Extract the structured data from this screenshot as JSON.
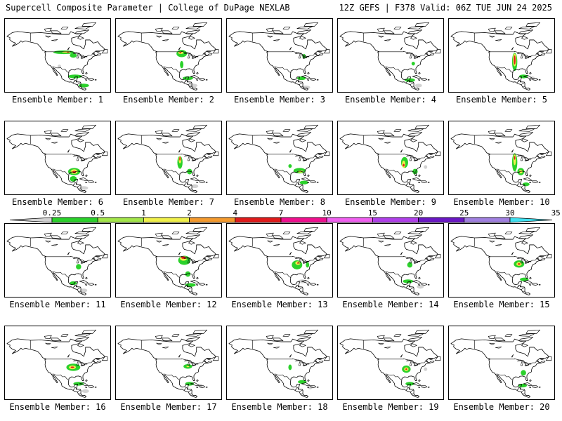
{
  "header": {
    "left": "Supercell Composite Parameter | College of DuPage NEXLAB",
    "right": "12Z GEFS | F378 Valid: 06Z TUE JUN 24 2025"
  },
  "colorbar": {
    "levels": [
      "0.25",
      "0.5",
      "1",
      "2",
      "4",
      "7",
      "10",
      "15",
      "20",
      "25",
      "30",
      "35"
    ],
    "colors": [
      "#d2d2d2",
      "#2bd12b",
      "#a3e64a",
      "#f0f04a",
      "#f49a2e",
      "#e01b1b",
      "#f0108f",
      "#f060f0",
      "#b040ea",
      "#6a18c4",
      "#a080e0",
      "#40e0f0"
    ]
  },
  "members": [
    {
      "caption": "Ensemble Member: 1",
      "blobs": [
        [
          "#2bd12b",
          -103,
          48.5,
          12,
          2
        ],
        [
          "#f0f04a",
          -100,
          48.8,
          5,
          1
        ],
        [
          "#e01b1b",
          -98,
          48.8,
          1.5,
          0.6
        ],
        [
          "#2bd12b",
          -92,
          45,
          4,
          2.5
        ],
        [
          "#2bd12b",
          -90,
          22,
          8,
          2
        ],
        [
          "#2bd12b",
          -80,
          12,
          6,
          2
        ],
        [
          "#d2d2d2",
          -108,
          33,
          2,
          2
        ]
      ]
    },
    {
      "caption": "Ensemble Member: 2",
      "blobs": [
        [
          "#2bd12b",
          -95,
          47,
          6,
          4
        ],
        [
          "#f0f04a",
          -96,
          48,
          3,
          1.5
        ],
        [
          "#e01b1b",
          -96.5,
          48,
          1.2,
          0.7
        ],
        [
          "#2bd12b",
          -95,
          35,
          2,
          4
        ],
        [
          "#2bd12b",
          -88,
          20,
          6,
          2
        ],
        [
          "#d2d2d2",
          -82,
          12,
          5,
          2
        ]
      ]
    },
    {
      "caption": "Ensemble Member: 3",
      "blobs": [
        [
          "#2bd12b",
          -82,
          44,
          2,
          2.5
        ],
        [
          "#2bd12b",
          -85,
          20,
          5,
          2
        ],
        [
          "#d2d2d2",
          -80,
          10,
          5,
          2
        ]
      ]
    },
    {
      "caption": "Ensemble Member: 4",
      "blobs": [
        [
          "#2bd12b",
          -84,
          36,
          2,
          2
        ],
        [
          "#2bd12b",
          -88,
          18,
          6,
          2
        ],
        [
          "#d2d2d2",
          -78,
          12,
          4,
          2
        ]
      ]
    },
    {
      "caption": "Ensemble Member: 5",
      "blobs": [
        [
          "#2bd12b",
          -95,
          38,
          3,
          10
        ],
        [
          "#f0f04a",
          -95,
          40,
          2,
          7
        ],
        [
          "#e01b1b",
          -95,
          40,
          1,
          5
        ],
        [
          "#2bd12b",
          -85,
          22,
          5,
          2
        ],
        [
          "#d2d2d2",
          -75,
          20,
          3,
          2
        ]
      ]
    },
    {
      "caption": "Ensemble Member: 6",
      "blobs": [
        [
          "#2bd12b",
          -91,
          30,
          7,
          4
        ],
        [
          "#f0f04a",
          -91,
          30,
          4,
          2.5
        ],
        [
          "#e01b1b",
          -91,
          29.5,
          2,
          1.2
        ],
        [
          "#2bd12b",
          -92,
          22,
          4,
          3
        ],
        [
          "#d2d2d2",
          -80,
          12,
          5,
          2
        ]
      ]
    },
    {
      "caption": "Ensemble Member: 7",
      "blobs": [
        [
          "#2bd12b",
          -97,
          40,
          3,
          7
        ],
        [
          "#f0f04a",
          -97,
          43,
          1.5,
          4
        ],
        [
          "#e01b1b",
          -97,
          44,
          0.8,
          2
        ],
        [
          "#2bd12b",
          -86,
          30,
          3,
          3
        ],
        [
          "#d2d2d2",
          -80,
          14,
          4,
          2
        ]
      ]
    },
    {
      "caption": "Ensemble Member: 8",
      "blobs": [
        [
          "#2bd12b",
          -87,
          31,
          7,
          3
        ],
        [
          "#f0f04a",
          -86,
          30,
          3,
          1.2
        ],
        [
          "#2bd12b",
          -98,
          36,
          2,
          2
        ],
        [
          "#2bd12b",
          -82,
          18,
          5,
          2
        ]
      ]
    },
    {
      "caption": "Ensemble Member: 9",
      "blobs": [
        [
          "#2bd12b",
          -94,
          40,
          4,
          6
        ],
        [
          "#f0f04a",
          -95,
          38,
          2,
          4
        ],
        [
          "#e01b1b",
          -95,
          37,
          1,
          1.5
        ],
        [
          "#2bd12b",
          -82,
          30,
          3,
          3
        ],
        [
          "#d2d2d2",
          -70,
          35,
          2,
          2
        ]
      ]
    },
    {
      "caption": "Ensemble Member: 10",
      "blobs": [
        [
          "#2bd12b",
          -95,
          40,
          3,
          10
        ],
        [
          "#f0f04a",
          -95,
          43,
          1.5,
          6
        ],
        [
          "#e01b1b",
          -95,
          45,
          0.7,
          2
        ],
        [
          "#2bd12b",
          -88,
          30,
          4,
          4
        ],
        [
          "#f0f04a",
          -88,
          30,
          2,
          2
        ],
        [
          "#2bd12b",
          -82,
          16,
          4,
          2
        ]
      ]
    },
    {
      "caption": "Ensemble Member: 11",
      "blobs": [
        [
          "#2bd12b",
          -86,
          38,
          3,
          3
        ],
        [
          "#2bd12b",
          -92,
          20,
          4,
          2
        ],
        [
          "#d2d2d2",
          -80,
          12,
          4,
          2
        ]
      ]
    },
    {
      "caption": "Ensemble Member: 12",
      "blobs": [
        [
          "#2bd12b",
          -92,
          45,
          7,
          5
        ],
        [
          "#f0f04a",
          -93,
          47,
          4,
          2.5
        ],
        [
          "#e01b1b",
          -93,
          48,
          2.5,
          1.4
        ],
        [
          "#2bd12b",
          -88,
          30,
          3,
          3
        ],
        [
          "#2bd12b",
          -85,
          18,
          6,
          2
        ]
      ]
    },
    {
      "caption": "Ensemble Member: 13",
      "blobs": [
        [
          "#2bd12b",
          -90,
          40,
          6,
          5
        ],
        [
          "#f0f04a",
          -89,
          42,
          3,
          2
        ],
        [
          "#e01b1b",
          -89,
          42,
          1,
          0.6
        ],
        [
          "#2bd12b",
          -78,
          40,
          2,
          3
        ],
        [
          "#d2d2d2",
          -84,
          22,
          5,
          2
        ]
      ]
    },
    {
      "caption": "Ensemble Member: 14",
      "blobs": [
        [
          "#2bd12b",
          -88,
          40,
          3,
          3
        ],
        [
          "#2bd12b",
          -90,
          22,
          6,
          2
        ],
        [
          "#d2d2d2",
          -76,
          16,
          4,
          2
        ]
      ]
    },
    {
      "caption": "Ensemble Member: 15",
      "blobs": [
        [
          "#2bd12b",
          -90,
          41,
          6,
          4
        ],
        [
          "#f0f04a",
          -90,
          41,
          3,
          2
        ],
        [
          "#e01b1b",
          -90,
          41,
          1.5,
          0.8
        ],
        [
          "#2bd12b",
          -84,
          24,
          5,
          2
        ]
      ]
    },
    {
      "caption": "Ensemble Member: 16",
      "blobs": [
        [
          "#2bd12b",
          -92,
          40,
          8,
          4
        ],
        [
          "#f0f04a",
          -93,
          40,
          4,
          2
        ],
        [
          "#e01b1b",
          -93,
          40,
          2,
          0.8
        ],
        [
          "#2bd12b",
          -86,
          22,
          6,
          2
        ],
        [
          "#d2d2d2",
          -78,
          14,
          4,
          2
        ]
      ]
    },
    {
      "caption": "Ensemble Member: 17",
      "blobs": [
        [
          "#2bd12b",
          -88,
          41,
          5,
          2.5
        ],
        [
          "#f0f04a",
          -88,
          41,
          1.5,
          0.8
        ],
        [
          "#2bd12b",
          -86,
          22,
          5,
          2
        ],
        [
          "#d2d2d2",
          -74,
          20,
          3,
          2
        ]
      ]
    },
    {
      "caption": "Ensemble Member: 18",
      "blobs": [
        [
          "#2bd12b",
          -98,
          40,
          2,
          3
        ],
        [
          "#2bd12b",
          -84,
          24,
          5,
          2
        ],
        [
          "#d2d2d2",
          -75,
          18,
          3,
          2
        ]
      ]
    },
    {
      "caption": "Ensemble Member: 19",
      "blobs": [
        [
          "#2bd12b",
          -92,
          38,
          5,
          4
        ],
        [
          "#f0f04a",
          -92,
          38,
          2.5,
          2
        ],
        [
          "#e01b1b",
          -92,
          38,
          1,
          0.8
        ],
        [
          "#2bd12b",
          -88,
          22,
          5,
          2
        ],
        [
          "#d2d2d2",
          -70,
          38,
          2,
          2
        ]
      ]
    },
    {
      "caption": "Ensemble Member: 20",
      "blobs": [
        [
          "#2bd12b",
          -85,
          34,
          3,
          3
        ],
        [
          "#2bd12b",
          -86,
          20,
          5,
          2
        ]
      ]
    }
  ]
}
